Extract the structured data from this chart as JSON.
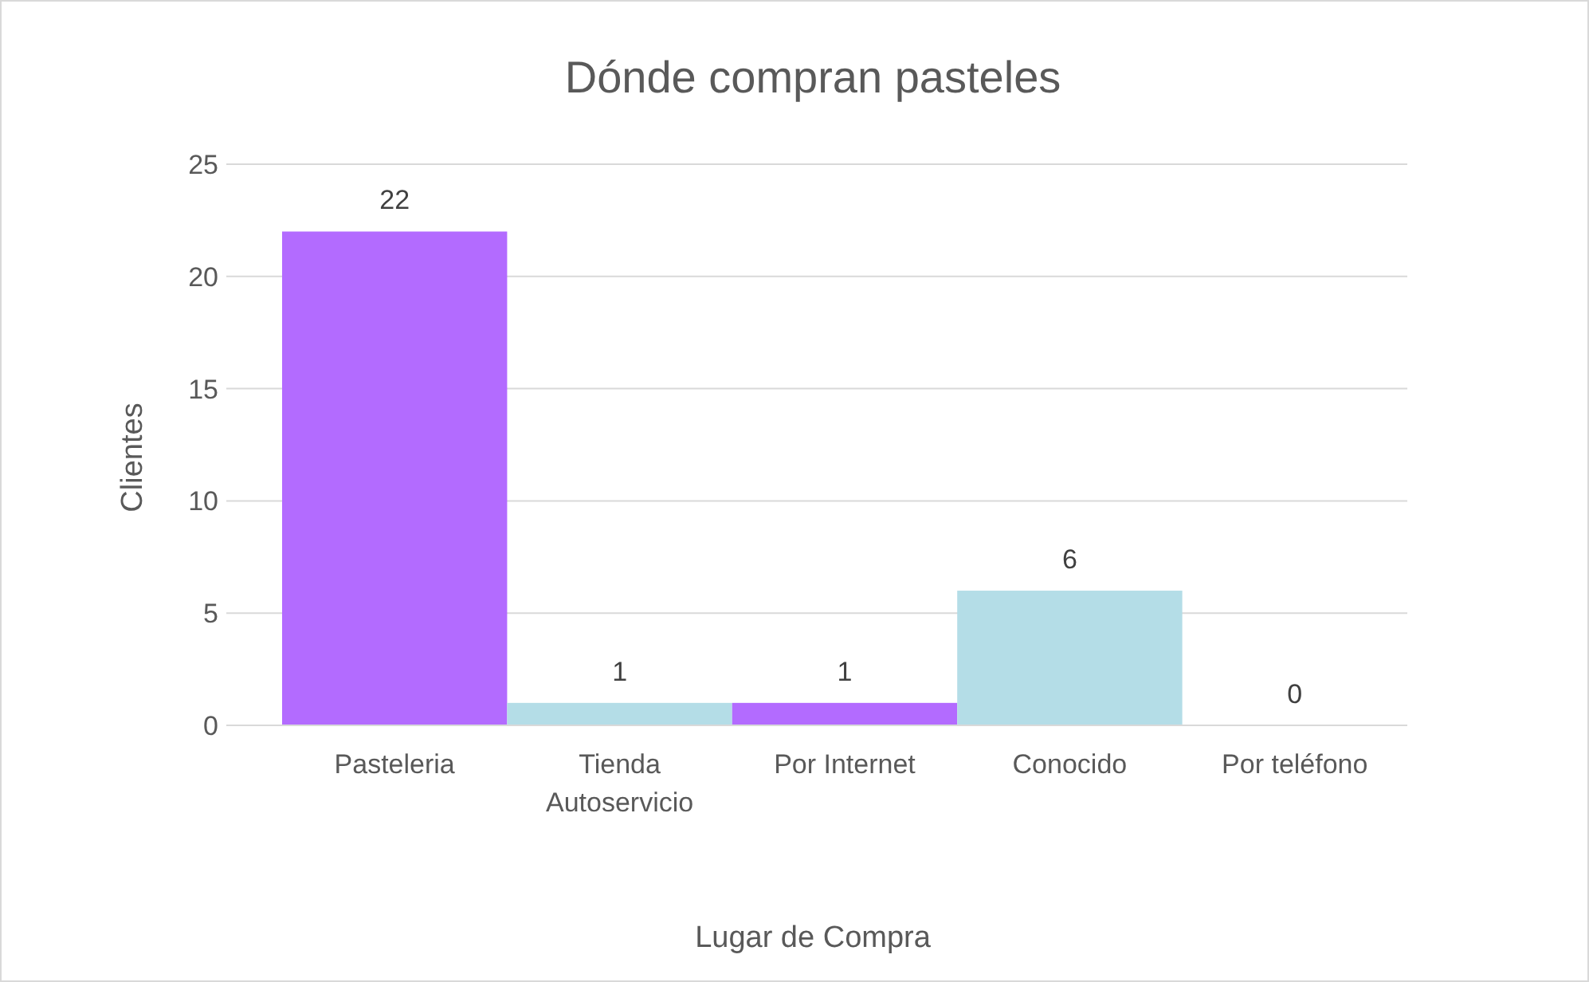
{
  "chart_data": {
    "type": "bar",
    "title": "Dónde compran pasteles",
    "xlabel": "Lugar de Compra",
    "ylabel": "Clientes",
    "categories": [
      "Pasteleria",
      "Tienda Autoservicio",
      "Por Internet",
      "Conocido",
      "Por teléfono"
    ],
    "values": [
      22,
      1,
      1,
      6,
      0
    ],
    "colors": [
      "#b36bff",
      "#b4dde7",
      "#b36bff",
      "#b4dde7",
      "#b36bff"
    ],
    "ylim": [
      0,
      25
    ],
    "yticks": [
      0,
      5,
      10,
      15,
      20,
      25
    ],
    "grid": "y",
    "data_labels": true
  }
}
